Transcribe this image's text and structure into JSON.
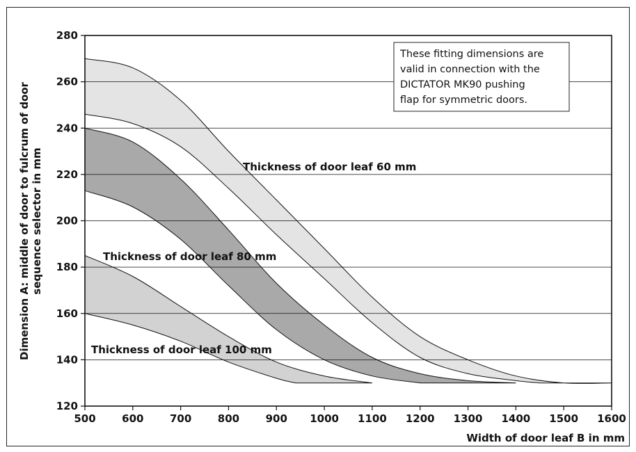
{
  "chart_data": {
    "type": "area",
    "xlabel": "Width of door leaf B in mm",
    "ylabel_lines": [
      "Dimension A: middle of door to fulcrum of door",
      "sequence selector in mm"
    ],
    "xlim": [
      500,
      1600
    ],
    "ylim": [
      120,
      280
    ],
    "x_ticks": [
      500,
      600,
      700,
      800,
      900,
      1000,
      1100,
      1200,
      1300,
      1400,
      1500,
      1600
    ],
    "y_ticks": [
      120,
      140,
      160,
      180,
      200,
      220,
      240,
      260,
      280
    ],
    "grid": "horizontal",
    "series": [
      {
        "name": "Thickness of door leaf 60 mm",
        "color": "#e4e4e4",
        "upper": [
          [
            500,
            270
          ],
          [
            600,
            266
          ],
          [
            700,
            252
          ],
          [
            800,
            230
          ],
          [
            900,
            209
          ],
          [
            1000,
            188
          ],
          [
            1100,
            167
          ],
          [
            1200,
            150
          ],
          [
            1300,
            140
          ],
          [
            1400,
            133
          ],
          [
            1500,
            130
          ],
          [
            1600,
            130
          ]
        ],
        "lower": [
          [
            500,
            246
          ],
          [
            600,
            242
          ],
          [
            700,
            232
          ],
          [
            800,
            214
          ],
          [
            900,
            194
          ],
          [
            1000,
            175
          ],
          [
            1100,
            156
          ],
          [
            1200,
            141
          ],
          [
            1300,
            134
          ],
          [
            1400,
            131
          ],
          [
            1450,
            130
          ]
        ]
      },
      {
        "name": "Thickness of door leaf 80 mm",
        "color": "#a9a9a9",
        "upper": [
          [
            500,
            240
          ],
          [
            600,
            234
          ],
          [
            700,
            218
          ],
          [
            800,
            196
          ],
          [
            900,
            173
          ],
          [
            1000,
            155
          ],
          [
            1100,
            141
          ],
          [
            1200,
            134
          ],
          [
            1300,
            131
          ],
          [
            1400,
            130
          ]
        ],
        "lower": [
          [
            500,
            213
          ],
          [
            600,
            206
          ],
          [
            700,
            192
          ],
          [
            800,
            172
          ],
          [
            900,
            153
          ],
          [
            1000,
            140
          ],
          [
            1100,
            133
          ],
          [
            1200,
            130
          ]
        ]
      },
      {
        "name": "Thickness of door leaf 100 mm",
        "color": "#d2d2d2",
        "upper": [
          [
            500,
            185
          ],
          [
            600,
            176
          ],
          [
            700,
            163
          ],
          [
            800,
            150
          ],
          [
            900,
            139
          ],
          [
            1000,
            133
          ],
          [
            1100,
            130
          ]
        ],
        "lower": [
          [
            500,
            160
          ],
          [
            600,
            155
          ],
          [
            700,
            148
          ],
          [
            800,
            139
          ],
          [
            900,
            132
          ],
          [
            940,
            130
          ]
        ]
      }
    ],
    "note": [
      "These fitting dimensions are",
      "valid in connection with the",
      "DICTATOR MK90 pushing",
      "flap for symmetric doors."
    ]
  }
}
